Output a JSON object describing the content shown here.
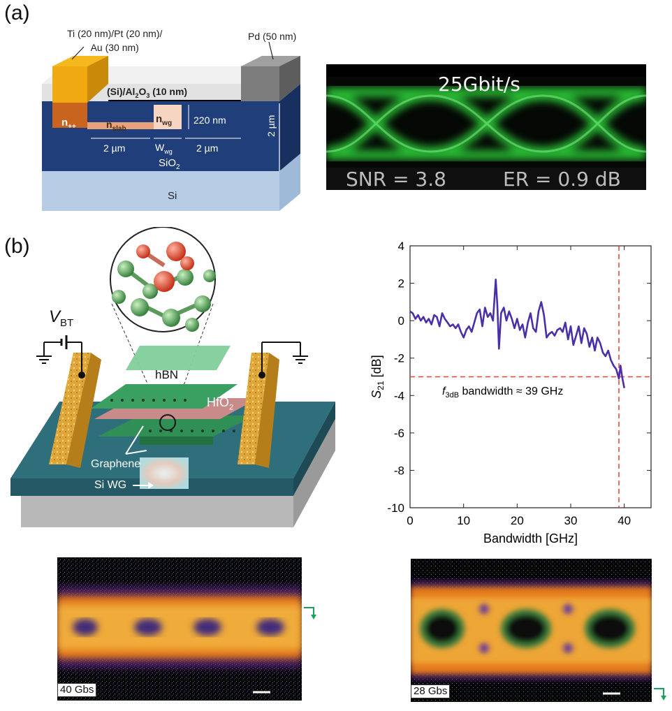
{
  "figure": {
    "panel_a": {
      "label": "(a)",
      "device": {
        "contact_left": "Ti (20 nm)/Pt (20 nm)/",
        "contact_left_line2": "Au (30 nm)",
        "contact_right": "Pd (50 nm)",
        "top_layer": "(Si)/Al",
        "top_layer_sub": "2",
        "top_layer_mid": "O",
        "top_layer_sub2": "3",
        "top_layer_end": " (10 nm)",
        "n_pp": "n",
        "n_pp_sub": "++",
        "n_slab": "n",
        "n_slab_sub": "slab",
        "n_wg": "n",
        "n_wg_sub": "wg",
        "height_wg": "220 nm",
        "dim_left": "2 µm",
        "dim_mid": "W",
        "dim_mid_sub": "wg",
        "dim_right": "2 µm",
        "oxide": "SiO",
        "oxide_sub": "2",
        "oxide_thickness": "2 µm",
        "substrate": "Si"
      },
      "eye": {
        "rate": "25Gbit/s",
        "snr": "SNR = 3.8",
        "er": "ER = 0.9 dB"
      }
    },
    "panel_b": {
      "label": "(b)",
      "device": {
        "bias": "V",
        "bias_sub": "BT",
        "hbn": "hBN",
        "hfo2": "HfO",
        "hfo2_sub": "2",
        "graphene": "Graphene",
        "si_wg": "Si WG"
      },
      "eye_left_tag": "40 Gbs",
      "eye_right_tag": "28 Gbs"
    }
  },
  "chart_data": {
    "type": "line",
    "xlabel": "Bandwidth [GHz]",
    "ylabel": "S",
    "ylabel_sub": "21",
    "ylabel_unit": " [dB]",
    "xlim": [
      0,
      45
    ],
    "ylim": [
      -10,
      4
    ],
    "xticks": [
      0,
      10,
      20,
      30,
      40
    ],
    "yticks": [
      4,
      2,
      0,
      -2,
      -4,
      -6,
      -8,
      -10
    ],
    "annotation_main": "f",
    "annotation_sub": "3dB",
    "annotation_rest": " bandwidth ≈ 39 GHz",
    "hline_y": -3,
    "vline_x": 39,
    "line_color": "#4a2fa8",
    "ref_color": "#e0443a",
    "series": [
      {
        "x": [
          0,
          0.5,
          1,
          1.5,
          2,
          2.5,
          3,
          3.5,
          4,
          4.5,
          5,
          5.5,
          6,
          6.5,
          7,
          7.5,
          8,
          8.5,
          9,
          9.5,
          10,
          10.5,
          11,
          11.5,
          12,
          12.5,
          13,
          13.5,
          14,
          14.5,
          15,
          15.5,
          16,
          16.3,
          16.6,
          17,
          17.5,
          18,
          18.5,
          19,
          19.5,
          20,
          20.5,
          21,
          21.5,
          22,
          22.5,
          23,
          23.5,
          24,
          24.5,
          25,
          25.5,
          26,
          26.5,
          27,
          27.5,
          28,
          28.5,
          29,
          29.5,
          30,
          30.5,
          31,
          31.5,
          32,
          32.5,
          33,
          33.5,
          34,
          34.5,
          35,
          35.5,
          36,
          36.5,
          37,
          37.5,
          38,
          38.5,
          39,
          39.3,
          39.6,
          40
        ],
        "y": [
          0.5,
          0.4,
          0.1,
          0.3,
          0.0,
          0.2,
          -0.1,
          0.1,
          -0.2,
          0.3,
          0.2,
          -0.3,
          0.4,
          0.1,
          -0.1,
          -0.3,
          -0.2,
          -0.4,
          -0.2,
          -0.6,
          -0.9,
          -0.5,
          -0.3,
          -0.6,
          -0.1,
          0.4,
          0.6,
          -0.3,
          0.7,
          0.2,
          0.4,
          0.0,
          2.2,
          0.8,
          -1.5,
          0.4,
          0.7,
          0.0,
          0.5,
          0.1,
          -0.4,
          0.1,
          -0.5,
          -0.2,
          -0.9,
          -0.1,
          0.4,
          -0.4,
          -0.6,
          0.5,
          1.0,
          0.3,
          -0.9,
          -0.7,
          -0.6,
          -0.8,
          -0.5,
          -0.4,
          -0.6,
          -0.1,
          -1.0,
          -0.3,
          -1.3,
          -0.8,
          -0.3,
          -1.2,
          -0.4,
          -0.7,
          -1.4,
          -0.9,
          -1.6,
          -0.9,
          -1.2,
          -1.7,
          -1.9,
          -1.6,
          -2.1,
          -2.4,
          -2.6,
          -3.1,
          -2.4,
          -3.0,
          -3.6
        ]
      }
    ]
  }
}
